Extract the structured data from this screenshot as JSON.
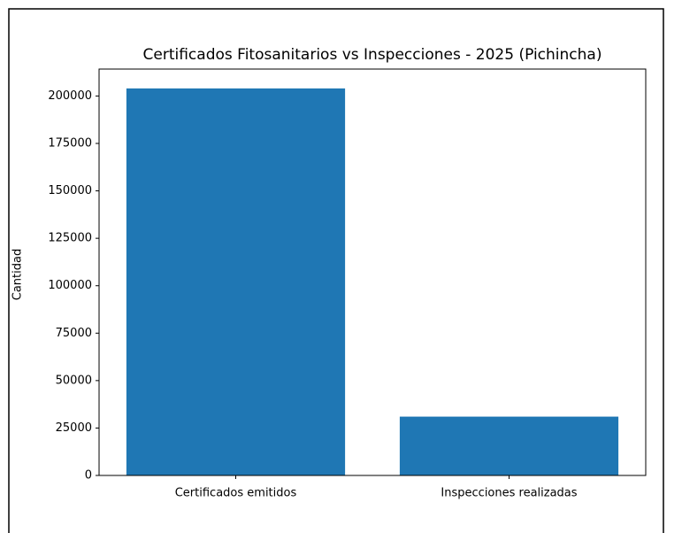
{
  "chart_data": {
    "type": "bar",
    "title": "Certificados Fitosanitarios vs Inspecciones - 2025 (Pichincha)",
    "ylabel": "Cantidad",
    "categories": [
      "Certificados emitidos",
      "Inspecciones realizadas"
    ],
    "values": [
      204000,
      31000
    ],
    "color": "#1f77b4",
    "ylim": [
      0,
      214200
    ],
    "yticks": [
      0,
      25000,
      50000,
      75000,
      100000,
      125000,
      150000,
      175000,
      200000
    ],
    "grid": false
  }
}
